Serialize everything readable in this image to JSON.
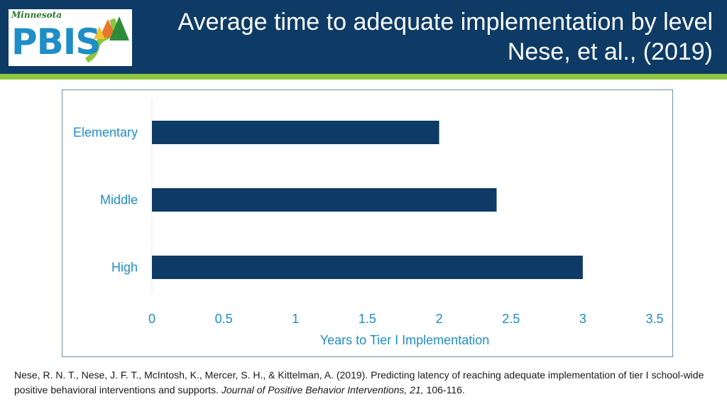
{
  "header": {
    "title_line1": "Average time to adequate implementation by level",
    "title_line2": "Nese, et al., (2019)"
  },
  "logo": {
    "state_text": "Minnesota",
    "name_text": "PBIS"
  },
  "colors": {
    "header_bg": "#0d3b66",
    "accent_green": "#8dc63f",
    "bar": "#0d3b66",
    "axis_text": "#1f8dc6"
  },
  "chart_data": {
    "type": "bar",
    "orientation": "horizontal",
    "categories": [
      "Elementary",
      "Middle",
      "High"
    ],
    "values": [
      2,
      2.4,
      3
    ],
    "xlabel": "Years to Tier I Implementation",
    "ylabel": "",
    "xlim": [
      0,
      3.5
    ],
    "xticks": [
      "0",
      "0.5",
      "1",
      "1.5",
      "2",
      "2.5",
      "3",
      "3.5"
    ],
    "grid": false
  },
  "citation": {
    "text": "Nese, R. N. T., Nese, J. F. T., McIntosh, K., Mercer, S. H., & Kittelman, A. (2019). Predicting latency of reaching adequate implementation of tier I school-wide positive behavioral interventions and supports. ",
    "journal": "Journal of Positive Behavior Interventions, 21,",
    "pages": " 106-116."
  }
}
